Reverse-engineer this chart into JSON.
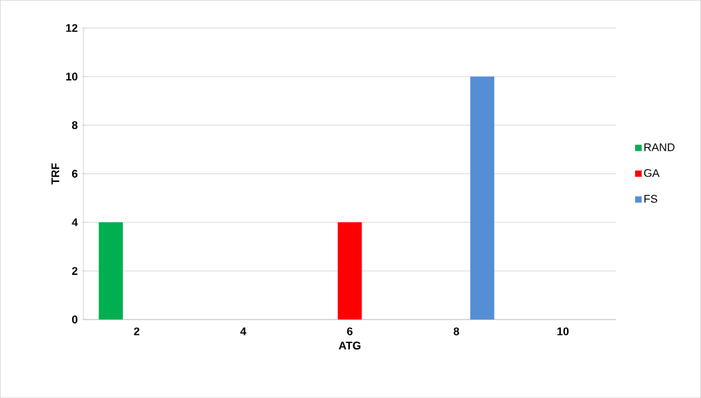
{
  "chart_data": {
    "type": "bar",
    "xlabel": "ATG",
    "ylabel": "TRF",
    "categories": [
      "2",
      "4",
      "6",
      "8",
      "10"
    ],
    "series": [
      {
        "name": "RAND",
        "color": "#00b050",
        "values": [
          4,
          0,
          0,
          0,
          0
        ]
      },
      {
        "name": "GA",
        "color": "#ff0000",
        "values": [
          0,
          0,
          4,
          0,
          0
        ]
      },
      {
        "name": "FS",
        "color": "#558ed5",
        "values": [
          0,
          0,
          0,
          10,
          0
        ]
      }
    ],
    "ylim": [
      0,
      12
    ],
    "yticks": [
      0,
      2,
      4,
      6,
      8,
      10,
      12
    ],
    "grid": "y",
    "legend": "right"
  }
}
